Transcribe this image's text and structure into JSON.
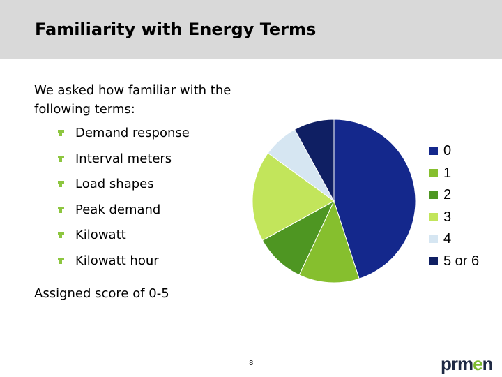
{
  "slide": {
    "title": "Familiarity with Energy Terms",
    "intro": "We asked how familiar with the following terms:",
    "bullets": [
      "Demand response",
      "Interval meters",
      "Load shapes",
      "Peak demand",
      "Kilowatt",
      "Kilowatt hour"
    ],
    "footer_text": "Assigned score of 0-5",
    "page_number": "8",
    "logo_text": "prmen",
    "logo_accent_letter": "e",
    "bullet_icon": "fleuron-icon",
    "colors": {
      "header_bg": "#d9d9d9",
      "bullet": "#8dc63f"
    }
  },
  "chart_data": {
    "type": "pie",
    "categories": [
      "0",
      "1",
      "2",
      "3",
      "4",
      "5 or 6"
    ],
    "values": [
      45,
      12,
      10,
      18,
      7,
      8
    ],
    "unit": "percent",
    "colors": [
      "#14288c",
      "#86bf2e",
      "#4e9622",
      "#c2e55b",
      "#d6e6f2",
      "#0f1f63"
    ],
    "legend_position": "right",
    "start_angle_deg": 0,
    "direction": "clockwise"
  }
}
